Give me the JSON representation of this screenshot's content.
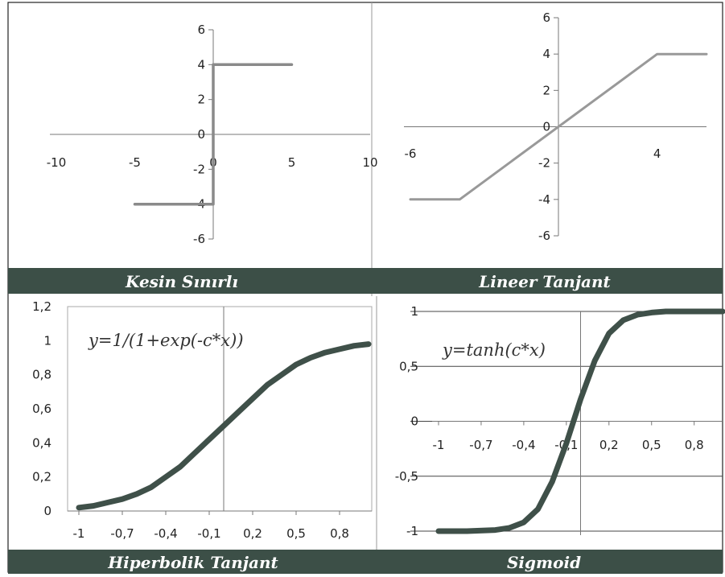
{
  "colors": {
    "band": "#3c4f47",
    "step_line": "#8a8a8a",
    "linear_line": "#999999",
    "curve_line": "#3f5049",
    "axis": "#777777"
  },
  "panels": {
    "top_left_label": "Kesin Sınırlı",
    "top_right_label": "Lineer Tanjant",
    "bottom_left_label": "Hiperbolik Tanjant",
    "bottom_right_label": "Sigmoid"
  },
  "chart_data": [
    {
      "type": "line",
      "x_ticks": [
        "-10",
        "-5",
        "0",
        "5",
        "10"
      ],
      "y_ticks": [
        "6",
        "4",
        "2",
        "0",
        "-2",
        "-4",
        "-6"
      ],
      "xlim": [
        -10,
        10
      ],
      "ylim": [
        -6,
        6
      ],
      "series": [
        {
          "x": [
            -5,
            0,
            0,
            5
          ],
          "y": [
            -4,
            -4,
            4,
            4
          ]
        }
      ]
    },
    {
      "type": "line",
      "x_ticks": [
        "-6",
        "4"
      ],
      "y_ticks": [
        "6",
        "4",
        "2",
        "0",
        "-2",
        "-4",
        "-6"
      ],
      "xlim": [
        -6,
        6
      ],
      "ylim": [
        -6,
        6
      ],
      "series": [
        {
          "x": [
            -6,
            -4,
            4,
            6
          ],
          "y": [
            -4,
            -4,
            4,
            4
          ]
        }
      ]
    },
    {
      "type": "line",
      "formula": "y=1/(1+exp(-c*x))",
      "x_ticks": [
        "-1",
        "-0,7",
        "-0,4",
        "-0,1",
        "0,2",
        "0,5",
        "0,8"
      ],
      "y_ticks": [
        "1,2",
        "1",
        "0,8",
        "0,6",
        "0,4",
        "0,2",
        "0"
      ],
      "xlim": [
        -1,
        1
      ],
      "ylim": [
        0,
        1.2
      ],
      "series": [
        {
          "x": [
            -1,
            -0.9,
            -0.8,
            -0.7,
            -0.6,
            -0.5,
            -0.4,
            -0.3,
            -0.2,
            -0.1,
            0,
            0.1,
            0.2,
            0.3,
            0.4,
            0.5,
            0.6,
            0.7,
            0.8,
            0.9,
            1
          ],
          "y": [
            0.02,
            0.03,
            0.05,
            0.07,
            0.1,
            0.14,
            0.2,
            0.26,
            0.34,
            0.42,
            0.5,
            0.58,
            0.66,
            0.74,
            0.8,
            0.86,
            0.9,
            0.93,
            0.95,
            0.97,
            0.98
          ]
        }
      ]
    },
    {
      "type": "line",
      "formula": "y=tanh(c*x)",
      "x_ticks": [
        "-1",
        "-0,7",
        "-0,4",
        "-0,1",
        "0,2",
        "0,5",
        "0,8"
      ],
      "y_ticks": [
        "1",
        "0,5",
        "0",
        "-0,5",
        "-1"
      ],
      "xlim": [
        -1,
        1
      ],
      "ylim": [
        -1,
        1
      ],
      "series": [
        {
          "x": [
            -1,
            -0.8,
            -0.6,
            -0.5,
            -0.4,
            -0.3,
            -0.2,
            -0.1,
            0,
            0.1,
            0.2,
            0.3,
            0.4,
            0.5,
            0.6,
            0.8,
            1
          ],
          "y": [
            -1,
            -1,
            -0.99,
            -0.97,
            -0.92,
            -0.8,
            -0.55,
            -0.2,
            0.2,
            0.55,
            0.8,
            0.92,
            0.97,
            0.99,
            1,
            1,
            1
          ]
        }
      ]
    }
  ]
}
